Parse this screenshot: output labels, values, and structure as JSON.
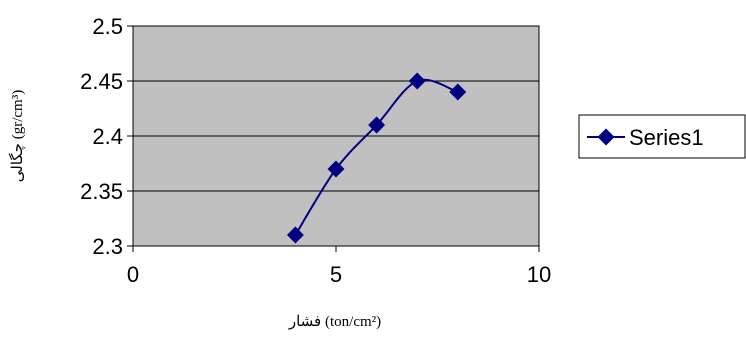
{
  "chart_data": {
    "type": "scatter",
    "series": [
      {
        "name": "Series1",
        "x": [
          4,
          5,
          6,
          7,
          8
        ],
        "y": [
          2.31,
          2.37,
          2.41,
          2.45,
          2.44
        ]
      }
    ],
    "xlim": [
      0,
      10
    ],
    "ylim": [
      2.3,
      2.5
    ],
    "xticks": [
      "0",
      "5",
      "10"
    ],
    "yticks": [
      "2.3",
      "2.35",
      "2.4",
      "2.45",
      "2.5"
    ],
    "xlabel": "فشار  (ton/cm²)",
    "ylabel": "چگالی  (gr/cm³)",
    "grid": true,
    "legend": "right",
    "smooth_line": true,
    "colors": {
      "plot_area": "#c0c0c0",
      "series": "#000080",
      "gridline": "#000000"
    }
  }
}
